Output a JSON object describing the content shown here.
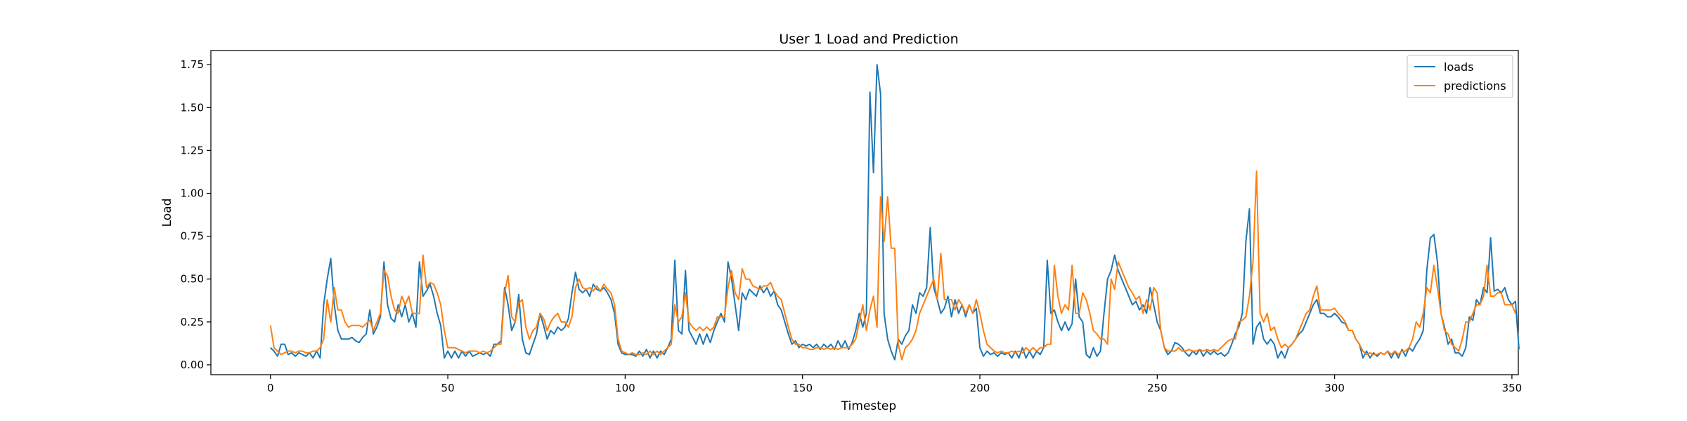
{
  "chart_data": {
    "type": "line",
    "title": "User 1 Load and Prediction",
    "xlabel": "Timestep",
    "ylabel": "Load",
    "xlim": [
      -16.8,
      351.8
    ],
    "ylim": [
      -0.0575,
      1.8325
    ],
    "xticks": [
      0,
      50,
      100,
      150,
      200,
      250,
      300,
      350
    ],
    "yticks": [
      0.0,
      0.25,
      0.5,
      0.75,
      1.0,
      1.25,
      1.5,
      1.75
    ],
    "ytick_labels": [
      "0.00",
      "0.25",
      "0.50",
      "0.75",
      "1.00",
      "1.25",
      "1.50",
      "1.75"
    ],
    "legend_position": "upper right",
    "grid": false,
    "series": [
      {
        "name": "loads",
        "color": "#1f77b4",
        "values": [
          0.1,
          0.08,
          0.05,
          0.12,
          0.12,
          0.06,
          0.07,
          0.05,
          0.07,
          0.06,
          0.05,
          0.07,
          0.04,
          0.08,
          0.04,
          0.35,
          0.5,
          0.62,
          0.35,
          0.2,
          0.15,
          0.15,
          0.15,
          0.16,
          0.14,
          0.13,
          0.16,
          0.18,
          0.32,
          0.18,
          0.22,
          0.28,
          0.6,
          0.35,
          0.27,
          0.25,
          0.35,
          0.28,
          0.35,
          0.25,
          0.3,
          0.22,
          0.6,
          0.4,
          0.43,
          0.47,
          0.4,
          0.3,
          0.23,
          0.04,
          0.08,
          0.04,
          0.08,
          0.04,
          0.08,
          0.05,
          0.08,
          0.05,
          0.06,
          0.07,
          0.06,
          0.07,
          0.05,
          0.12,
          0.12,
          0.14,
          0.45,
          0.35,
          0.2,
          0.25,
          0.41,
          0.15,
          0.07,
          0.06,
          0.12,
          0.18,
          0.3,
          0.23,
          0.15,
          0.2,
          0.18,
          0.22,
          0.2,
          0.22,
          0.27,
          0.42,
          0.54,
          0.44,
          0.42,
          0.44,
          0.4,
          0.47,
          0.44,
          0.43,
          0.45,
          0.42,
          0.38,
          0.3,
          0.12,
          0.07,
          0.06,
          0.06,
          0.06,
          0.05,
          0.08,
          0.05,
          0.09,
          0.04,
          0.08,
          0.04,
          0.08,
          0.06,
          0.1,
          0.15,
          0.61,
          0.2,
          0.18,
          0.55,
          0.2,
          0.16,
          0.12,
          0.18,
          0.12,
          0.18,
          0.13,
          0.2,
          0.25,
          0.3,
          0.25,
          0.6,
          0.5,
          0.35,
          0.2,
          0.42,
          0.38,
          0.44,
          0.42,
          0.4,
          0.46,
          0.42,
          0.45,
          0.4,
          0.43,
          0.35,
          0.32,
          0.25,
          0.18,
          0.12,
          0.14,
          0.1,
          0.12,
          0.11,
          0.12,
          0.1,
          0.12,
          0.09,
          0.12,
          0.1,
          0.12,
          0.09,
          0.14,
          0.1,
          0.14,
          0.09,
          0.13,
          0.2,
          0.3,
          0.22,
          0.3,
          1.59,
          1.12,
          1.75,
          1.58,
          0.3,
          0.15,
          0.08,
          0.03,
          0.15,
          0.12,
          0.17,
          0.2,
          0.35,
          0.3,
          0.42,
          0.4,
          0.45,
          0.8,
          0.45,
          0.38,
          0.3,
          0.33,
          0.4,
          0.28,
          0.38,
          0.3,
          0.35,
          0.28,
          0.35,
          0.3,
          0.33,
          0.1,
          0.05,
          0.08,
          0.06,
          0.07,
          0.05,
          0.07,
          0.06,
          0.07,
          0.04,
          0.08,
          0.04,
          0.1,
          0.04,
          0.08,
          0.04,
          0.08,
          0.06,
          0.1,
          0.61,
          0.3,
          0.32,
          0.25,
          0.2,
          0.25,
          0.2,
          0.24,
          0.5,
          0.28,
          0.25,
          0.06,
          0.04,
          0.1,
          0.05,
          0.08,
          0.3,
          0.5,
          0.55,
          0.64,
          0.55,
          0.5,
          0.45,
          0.4,
          0.35,
          0.37,
          0.32,
          0.35,
          0.3,
          0.45,
          0.35,
          0.25,
          0.2,
          0.1,
          0.06,
          0.08,
          0.13,
          0.12,
          0.1,
          0.07,
          0.05,
          0.08,
          0.06,
          0.09,
          0.05,
          0.08,
          0.06,
          0.08,
          0.06,
          0.07,
          0.05,
          0.07,
          0.12,
          0.18,
          0.22,
          0.3,
          0.72,
          0.91,
          0.12,
          0.22,
          0.25,
          0.15,
          0.12,
          0.15,
          0.12,
          0.04,
          0.08,
          0.04,
          0.1,
          0.12,
          0.15,
          0.18,
          0.2,
          0.25,
          0.3,
          0.35,
          0.38,
          0.3,
          0.3,
          0.28,
          0.28,
          0.3,
          0.28,
          0.25,
          0.24,
          0.2,
          0.2,
          0.15,
          0.12,
          0.04,
          0.08,
          0.04,
          0.07,
          0.05,
          0.07,
          0.06,
          0.08,
          0.04,
          0.08,
          0.04,
          0.09,
          0.05,
          0.1,
          0.08,
          0.12,
          0.15,
          0.2,
          0.55,
          0.74,
          0.76,
          0.6,
          0.3,
          0.22,
          0.12,
          0.15,
          0.07,
          0.07,
          0.05,
          0.1,
          0.28,
          0.26,
          0.38,
          0.35,
          0.45,
          0.42,
          0.74,
          0.43,
          0.44,
          0.42,
          0.45,
          0.38,
          0.35,
          0.37,
          0.09
        ]
      },
      {
        "name": "predictions",
        "color": "#ff7f0e",
        "values": [
          0.23,
          0.1,
          0.08,
          0.06,
          0.07,
          0.08,
          0.08,
          0.07,
          0.08,
          0.08,
          0.07,
          0.07,
          0.08,
          0.08,
          0.1,
          0.15,
          0.38,
          0.25,
          0.45,
          0.32,
          0.32,
          0.25,
          0.22,
          0.23,
          0.23,
          0.23,
          0.22,
          0.24,
          0.26,
          0.2,
          0.25,
          0.3,
          0.55,
          0.52,
          0.4,
          0.32,
          0.3,
          0.4,
          0.35,
          0.4,
          0.3,
          0.3,
          0.3,
          0.64,
          0.45,
          0.48,
          0.47,
          0.42,
          0.35,
          0.2,
          0.1,
          0.1,
          0.1,
          0.09,
          0.08,
          0.07,
          0.08,
          0.08,
          0.08,
          0.07,
          0.08,
          0.07,
          0.08,
          0.1,
          0.12,
          0.12,
          0.42,
          0.52,
          0.28,
          0.25,
          0.36,
          0.38,
          0.22,
          0.15,
          0.2,
          0.22,
          0.3,
          0.27,
          0.2,
          0.25,
          0.28,
          0.3,
          0.25,
          0.25,
          0.22,
          0.28,
          0.45,
          0.5,
          0.45,
          0.44,
          0.45,
          0.43,
          0.46,
          0.43,
          0.47,
          0.44,
          0.42,
          0.35,
          0.15,
          0.08,
          0.07,
          0.06,
          0.07,
          0.06,
          0.06,
          0.07,
          0.06,
          0.08,
          0.06,
          0.08,
          0.06,
          0.08,
          0.1,
          0.12,
          0.35,
          0.25,
          0.28,
          0.42,
          0.25,
          0.22,
          0.2,
          0.22,
          0.2,
          0.22,
          0.2,
          0.22,
          0.28,
          0.28,
          0.28,
          0.45,
          0.55,
          0.42,
          0.38,
          0.56,
          0.5,
          0.5,
          0.46,
          0.45,
          0.44,
          0.46,
          0.46,
          0.48,
          0.43,
          0.4,
          0.38,
          0.3,
          0.22,
          0.15,
          0.12,
          0.12,
          0.1,
          0.1,
          0.09,
          0.09,
          0.1,
          0.1,
          0.09,
          0.1,
          0.09,
          0.1,
          0.09,
          0.1,
          0.1,
          0.1,
          0.12,
          0.15,
          0.25,
          0.35,
          0.2,
          0.32,
          0.4,
          0.22,
          0.98,
          0.72,
          0.98,
          0.68,
          0.68,
          0.12,
          0.03,
          0.1,
          0.12,
          0.15,
          0.2,
          0.3,
          0.35,
          0.4,
          0.45,
          0.5,
          0.38,
          0.65,
          0.38,
          0.38,
          0.38,
          0.32,
          0.38,
          0.35,
          0.3,
          0.35,
          0.3,
          0.38,
          0.3,
          0.2,
          0.12,
          0.1,
          0.08,
          0.07,
          0.08,
          0.07,
          0.07,
          0.08,
          0.07,
          0.08,
          0.07,
          0.1,
          0.08,
          0.1,
          0.08,
          0.1,
          0.1,
          0.12,
          0.12,
          0.58,
          0.4,
          0.3,
          0.35,
          0.32,
          0.58,
          0.3,
          0.3,
          0.42,
          0.38,
          0.3,
          0.2,
          0.18,
          0.15,
          0.15,
          0.12,
          0.5,
          0.44,
          0.6,
          0.55,
          0.5,
          0.45,
          0.42,
          0.38,
          0.4,
          0.3,
          0.38,
          0.32,
          0.45,
          0.42,
          0.2,
          0.1,
          0.08,
          0.08,
          0.08,
          0.1,
          0.08,
          0.08,
          0.09,
          0.08,
          0.08,
          0.09,
          0.08,
          0.09,
          0.08,
          0.09,
          0.08,
          0.1,
          0.12,
          0.14,
          0.15,
          0.15,
          0.25,
          0.26,
          0.28,
          0.4,
          0.6,
          1.13,
          0.3,
          0.25,
          0.3,
          0.2,
          0.22,
          0.15,
          0.1,
          0.12,
          0.1,
          0.12,
          0.15,
          0.2,
          0.25,
          0.3,
          0.32,
          0.4,
          0.46,
          0.32,
          0.32,
          0.32,
          0.32,
          0.33,
          0.3,
          0.28,
          0.25,
          0.2,
          0.2,
          0.15,
          0.12,
          0.08,
          0.06,
          0.07,
          0.06,
          0.06,
          0.07,
          0.06,
          0.08,
          0.06,
          0.08,
          0.06,
          0.08,
          0.08,
          0.1,
          0.15,
          0.25,
          0.22,
          0.3,
          0.45,
          0.42,
          0.58,
          0.45,
          0.3,
          0.2,
          0.18,
          0.12,
          0.1,
          0.08,
          0.15,
          0.25,
          0.25,
          0.3,
          0.35,
          0.35,
          0.4,
          0.58,
          0.4,
          0.4,
          0.42,
          0.42,
          0.35,
          0.35,
          0.35,
          0.3
        ]
      }
    ]
  }
}
